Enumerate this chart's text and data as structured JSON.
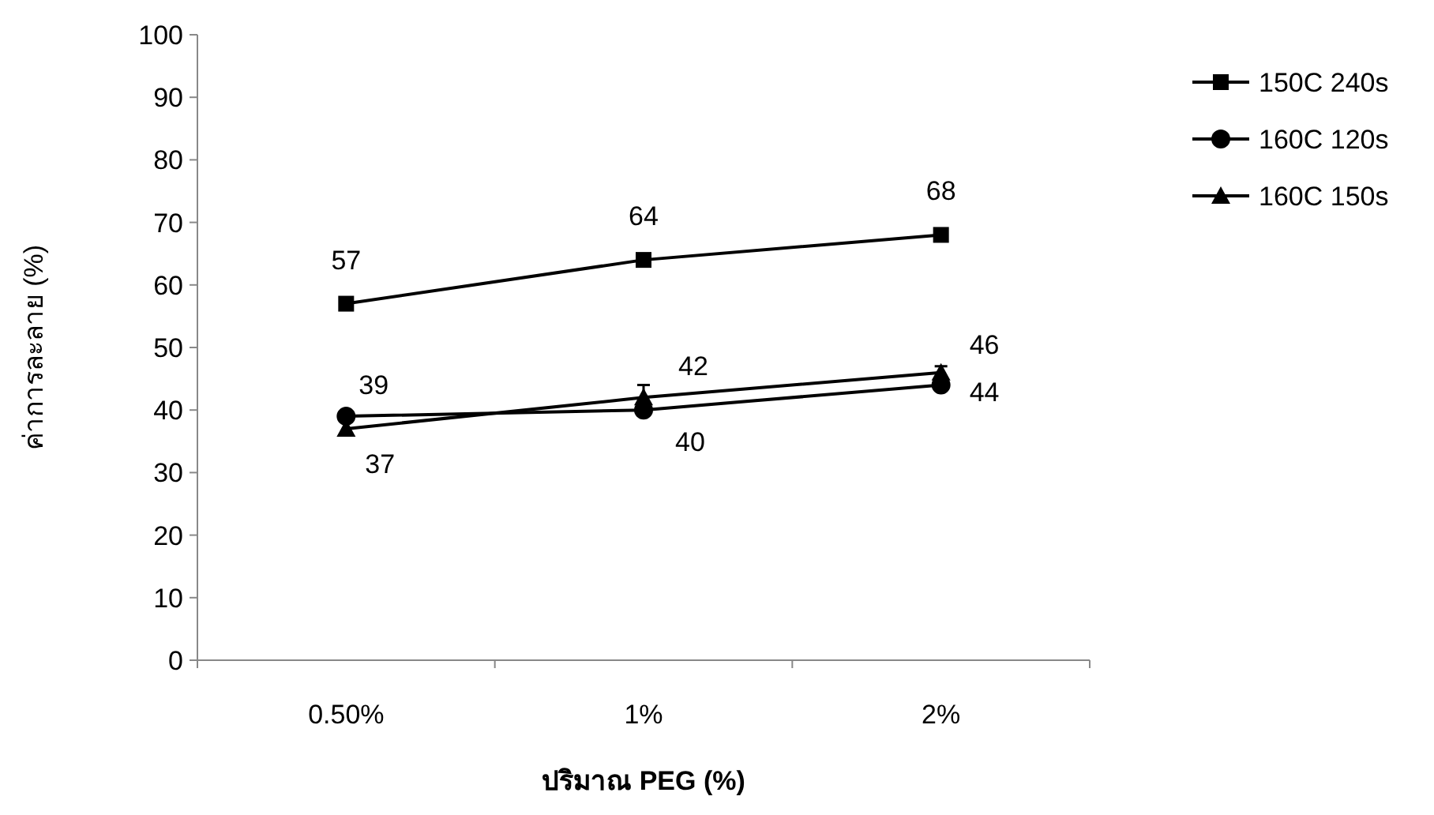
{
  "chart_data": {
    "type": "line",
    "xlabel": "ปริมาณ PEG (%)",
    "ylabel": "ค่าการละลาย (%)",
    "categories": [
      "0.50%",
      "1%",
      "2%"
    ],
    "ylim": [
      0,
      100
    ],
    "yticks": [
      0,
      10,
      20,
      30,
      40,
      50,
      60,
      70,
      80,
      90,
      100
    ],
    "grid": false,
    "legend": "right",
    "data_labels": true,
    "line_style": "solid",
    "series": [
      {
        "name": "150C 240s",
        "color": "#000000",
        "marker": "square",
        "values": [
          57,
          64,
          68
        ]
      },
      {
        "name": "160C 120s",
        "color": "#000000",
        "marker": "circle",
        "values": [
          39,
          40,
          44
        ]
      },
      {
        "name": "160C 150s",
        "color": "#000000",
        "marker": "triangle",
        "values": [
          37,
          42,
          46
        ],
        "errors": [
          null,
          2,
          1
        ]
      }
    ]
  }
}
